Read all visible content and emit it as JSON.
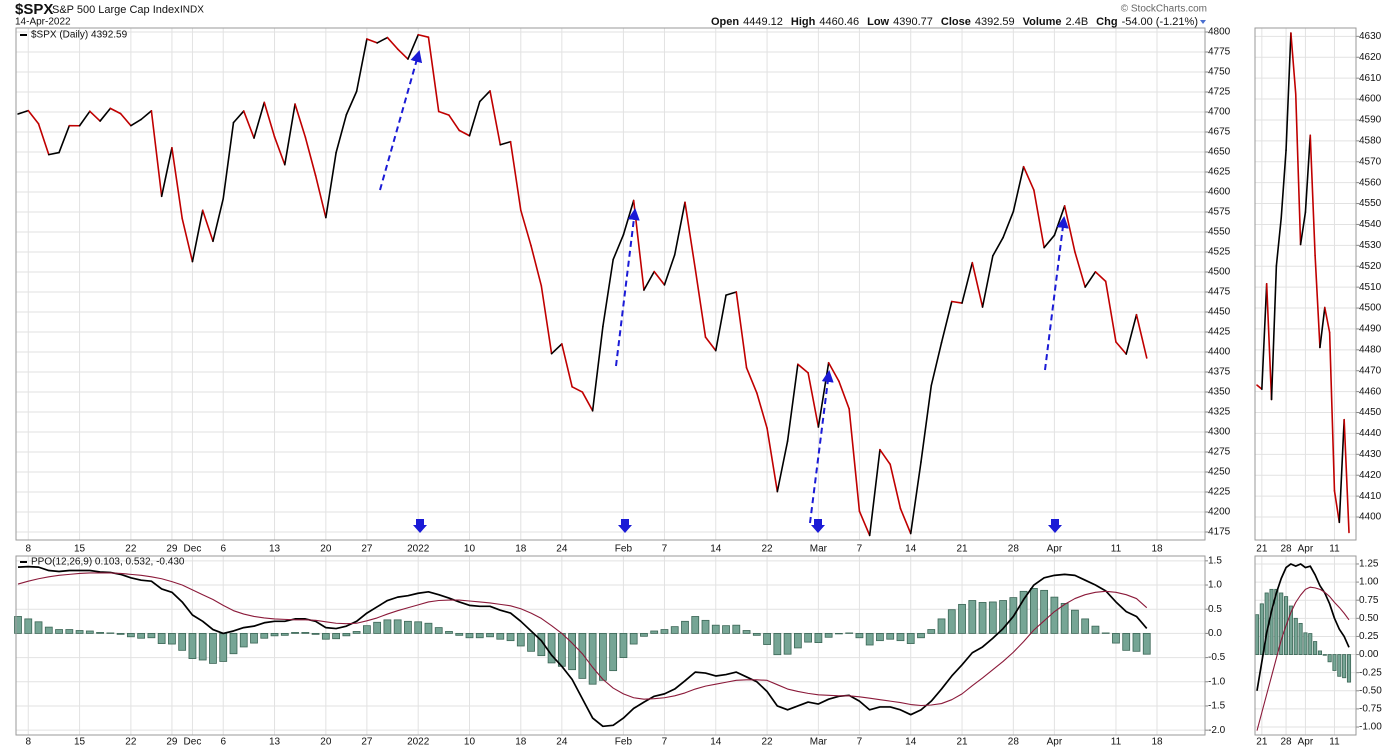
{
  "header": {
    "symbol": "$SPX",
    "name": "S&P 500 Large Cap Index",
    "exchange": "INDX",
    "date": "14-Apr-2022",
    "source": "© StockCharts.com",
    "quote": [
      {
        "label": "Open",
        "value": "4449.12"
      },
      {
        "label": "High",
        "value": "4460.46"
      },
      {
        "label": "Low",
        "value": "4390.77"
      },
      {
        "label": "Close",
        "value": "4392.59"
      },
      {
        "label": "Volume",
        "value": "2.4B"
      },
      {
        "label": "Chg",
        "value": "-54.00 (-1.21%)"
      }
    ]
  },
  "chart_data": [
    {
      "type": "line",
      "legend": "$SPX (Daily) 4392.59",
      "up_color": "#000000",
      "down_color": "#c00000",
      "grid": true,
      "categories": [
        null,
        "8",
        null,
        null,
        null,
        null,
        "15",
        null,
        null,
        null,
        null,
        "22",
        null,
        null,
        null,
        "29",
        null,
        "Dec",
        null,
        null,
        "6",
        null,
        null,
        null,
        null,
        "13",
        null,
        null,
        null,
        null,
        "20",
        null,
        null,
        null,
        "27",
        null,
        null,
        null,
        null,
        "2022",
        null,
        null,
        null,
        null,
        "10",
        null,
        null,
        null,
        null,
        "18",
        null,
        null,
        null,
        "24",
        null,
        null,
        null,
        null,
        null,
        "Feb",
        null,
        null,
        null,
        "7",
        null,
        null,
        null,
        null,
        "14",
        null,
        null,
        null,
        null,
        "22",
        null,
        null,
        null,
        null,
        "Mar",
        null,
        null,
        null,
        "7",
        null,
        null,
        null,
        null,
        "14",
        null,
        null,
        null,
        null,
        "21",
        null,
        null,
        null,
        null,
        "28",
        null,
        null,
        null,
        "Apr",
        null,
        null,
        null,
        null,
        null,
        "11",
        null,
        null,
        null,
        "18"
      ],
      "values": [
        4697.53,
        4701.7,
        4685.25,
        4646.71,
        4649.27,
        4682.85,
        4682.8,
        4700.9,
        4688.67,
        4704.54,
        4697.96,
        4682.94,
        4690.7,
        4701.46,
        4594.62,
        4655.27,
        4567.0,
        4513.04,
        4577.1,
        4538.43,
        4591.67,
        4686.75,
        4701.21,
        4667.45,
        4712.02,
        4668.97,
        4634.09,
        4709.85,
        4668.67,
        4620.64,
        4568.02,
        4649.23,
        4696.56,
        4725.79,
        4791.19,
        4786.35,
        4793.06,
        4778.73,
        4766.18,
        4796.56,
        4793.54,
        4700.58,
        4696.05,
        4677.03,
        4670.29,
        4713.07,
        4726.35,
        4659.03,
        4662.85,
        4577.11,
        4532.76,
        4482.73,
        4397.94,
        4410.13,
        4356.45,
        4349.93,
        4326.51,
        4431.85,
        4515.55,
        4546.54,
        4589.38,
        4477.44,
        4500.53,
        4483.87,
        4521.54,
        4587.18,
        4504.08,
        4418.64,
        4401.67,
        4471.07,
        4475.01,
        4380.26,
        4348.87,
        4304.76,
        4225.5,
        4288.7,
        4384.65,
        4373.94,
        4306.26,
        4386.54,
        4363.49,
        4328.87,
        4201.09,
        4170.7,
        4277.88,
        4259.52,
        4204.31,
        4173.11,
        4262.45,
        4357.86,
        4411.67,
        4463.12,
        4461.18,
        4511.61,
        4456.24,
        4520.16,
        4543.06,
        4575.52,
        4631.6,
        4602.45,
        4530.41,
        4545.86,
        4582.64,
        4525.12,
        4481.15,
        4500.21,
        4488.28,
        4412.53,
        4397.45,
        4446.59,
        4392.59,
        null
      ],
      "ylim": [
        4165,
        4805
      ],
      "yticks": [
        4175,
        4200,
        4225,
        4250,
        4275,
        4300,
        4325,
        4350,
        4375,
        4400,
        4425,
        4450,
        4475,
        4500,
        4525,
        4550,
        4575,
        4600,
        4625,
        4650,
        4675,
        4700,
        4725,
        4750,
        4775,
        4800
      ]
    },
    {
      "type": "combo",
      "legend": "PPO(12,26,9) 0.103, 0.532, -0.430",
      "grid": true,
      "series": [
        {
          "kind": "bar",
          "color": "#76a595",
          "values": [
            0.35,
            0.3,
            0.24,
            0.13,
            0.08,
            0.08,
            0.06,
            0.05,
            0.02,
            0.01,
            -0.02,
            -0.07,
            -0.1,
            -0.09,
            -0.21,
            -0.22,
            -0.35,
            -0.52,
            -0.55,
            -0.62,
            -0.58,
            -0.42,
            -0.28,
            -0.2,
            -0.1,
            -0.05,
            -0.04,
            0.02,
            0.02,
            -0.02,
            -0.12,
            -0.11,
            -0.05,
            0.04,
            0.16,
            0.23,
            0.28,
            0.28,
            0.25,
            0.24,
            0.21,
            0.12,
            0.04,
            -0.04,
            -0.09,
            -0.09,
            -0.07,
            -0.12,
            -0.15,
            -0.26,
            -0.37,
            -0.46,
            -0.61,
            -0.68,
            -0.75,
            -0.93,
            -1.05,
            -0.97,
            -0.77,
            -0.5,
            -0.22,
            -0.06,
            0.05,
            0.08,
            0.14,
            0.25,
            0.35,
            0.27,
            0.17,
            0.16,
            0.17,
            0.06,
            -0.04,
            -0.23,
            -0.44,
            -0.43,
            -0.3,
            -0.18,
            -0.19,
            -0.08,
            -0.01,
            0.01,
            -0.09,
            -0.24,
            -0.15,
            -0.12,
            -0.15,
            -0.21,
            -0.09,
            0.08,
            0.3,
            0.49,
            0.6,
            0.68,
            0.64,
            0.65,
            0.68,
            0.74,
            0.87,
            0.93,
            0.89,
            0.75,
            0.62,
            0.48,
            0.3,
            0.15,
            0.01,
            -0.2,
            -0.35,
            -0.37,
            -0.43,
            null
          ]
        },
        {
          "color": "#000000",
          "values": [
            1.37,
            1.38,
            1.37,
            1.3,
            1.28,
            1.3,
            1.3,
            1.3,
            1.27,
            1.26,
            1.22,
            1.15,
            1.1,
            1.08,
            0.92,
            0.85,
            0.65,
            0.38,
            0.25,
            0.08,
            0.0,
            0.05,
            0.12,
            0.15,
            0.22,
            0.25,
            0.25,
            0.3,
            0.3,
            0.25,
            0.12,
            0.1,
            0.15,
            0.25,
            0.42,
            0.55,
            0.68,
            0.75,
            0.78,
            0.83,
            0.86,
            0.8,
            0.73,
            0.65,
            0.58,
            0.56,
            0.56,
            0.48,
            0.42,
            0.25,
            0.05,
            -0.15,
            -0.45,
            -0.68,
            -0.95,
            -1.35,
            -1.75,
            -1.92,
            -1.9,
            -1.75,
            -1.55,
            -1.42,
            -1.3,
            -1.25,
            -1.15,
            -0.98,
            -0.8,
            -0.82,
            -0.88,
            -0.85,
            -0.8,
            -0.9,
            -1.0,
            -1.2,
            -1.5,
            -1.58,
            -1.5,
            -1.42,
            -1.46,
            -1.36,
            -1.3,
            -1.28,
            -1.4,
            -1.58,
            -1.52,
            -1.52,
            -1.58,
            -1.68,
            -1.58,
            -1.4,
            -1.15,
            -0.88,
            -0.65,
            -0.4,
            -0.28,
            -0.1,
            0.1,
            0.35,
            0.7,
            1.0,
            1.15,
            1.2,
            1.22,
            1.2,
            1.1,
            1.0,
            0.88,
            0.65,
            0.45,
            0.35,
            0.103,
            null
          ]
        },
        {
          "color": "#8b1a3a",
          "values": [
            1.02,
            1.08,
            1.13,
            1.17,
            1.2,
            1.22,
            1.24,
            1.25,
            1.25,
            1.25,
            1.24,
            1.22,
            1.2,
            1.17,
            1.13,
            1.07,
            1.0,
            0.9,
            0.8,
            0.7,
            0.58,
            0.47,
            0.4,
            0.35,
            0.32,
            0.3,
            0.29,
            0.28,
            0.28,
            0.27,
            0.24,
            0.21,
            0.2,
            0.21,
            0.26,
            0.32,
            0.4,
            0.47,
            0.53,
            0.59,
            0.65,
            0.68,
            0.69,
            0.69,
            0.67,
            0.65,
            0.63,
            0.6,
            0.57,
            0.51,
            0.42,
            0.31,
            0.16,
            0.0,
            -0.2,
            -0.42,
            -0.7,
            -0.95,
            -1.13,
            -1.25,
            -1.33,
            -1.36,
            -1.35,
            -1.33,
            -1.29,
            -1.23,
            -1.15,
            -1.09,
            -1.05,
            -1.01,
            -0.97,
            -0.96,
            -0.96,
            -0.97,
            -1.06,
            -1.15,
            -1.2,
            -1.24,
            -1.27,
            -1.28,
            -1.29,
            -1.29,
            -1.31,
            -1.34,
            -1.37,
            -1.4,
            -1.43,
            -1.47,
            -1.49,
            -1.48,
            -1.45,
            -1.37,
            -1.25,
            -1.08,
            -0.92,
            -0.75,
            -0.58,
            -0.39,
            -0.17,
            0.07,
            0.26,
            0.45,
            0.6,
            0.72,
            0.8,
            0.85,
            0.87,
            0.85,
            0.8,
            0.72,
            0.532,
            null
          ]
        }
      ],
      "ylim": [
        -2.1,
        1.6
      ],
      "yticks": [
        1.5,
        {
          "value": 1,
          "label": "1.0"
        },
        0.5,
        {
          "value": 0,
          "label": "0.0"
        },
        -0.5,
        {
          "value": -1,
          "label": "-1.0"
        },
        -1.5,
        {
          "value": -2,
          "label": "-2.0"
        }
      ]
    },
    {
      "type": "line",
      "up_color": "#000000",
      "down_color": "#c00000",
      "grid": true,
      "categories": [
        null,
        "21",
        null,
        null,
        null,
        null,
        "28",
        null,
        null,
        null,
        "Apr",
        null,
        null,
        null,
        null,
        null,
        "11",
        null,
        null,
        null
      ],
      "values": [
        4463.12,
        4461.18,
        4511.61,
        4456.24,
        4520.16,
        4543.06,
        4575.52,
        4631.6,
        4602.45,
        4530.41,
        4545.86,
        4582.64,
        4525.12,
        4481.15,
        4500.21,
        4488.28,
        4412.53,
        4397.45,
        4446.59,
        4392.59
      ],
      "ylim": [
        4389,
        4634
      ],
      "yticks": [
        4400,
        4410,
        4420,
        4430,
        4440,
        4450,
        4460,
        4470,
        4480,
        4490,
        4500,
        4510,
        4520,
        4530,
        4540,
        4550,
        4560,
        4570,
        4580,
        4590,
        4600,
        4610,
        4620,
        4630
      ]
    },
    {
      "type": "combo",
      "grid": true,
      "series": [
        {
          "kind": "bar",
          "color": "#76a595",
          "values": [
            0.55,
            0.7,
            0.85,
            0.9,
            0.9,
            0.85,
            0.8,
            0.67,
            0.5,
            0.43,
            0.3,
            0.29,
            0.18,
            0.05,
            -0.01,
            -0.1,
            -0.22,
            -0.3,
            -0.32,
            -0.38
          ]
        },
        {
          "color": "#000000",
          "values": [
            -0.5,
            -0.1,
            0.3,
            0.6,
            0.85,
            1.05,
            1.2,
            1.25,
            1.22,
            1.25,
            1.2,
            1.22,
            1.1,
            0.95,
            0.85,
            0.7,
            0.5,
            0.35,
            0.25,
            0.1
          ]
        },
        {
          "color": "#8b1a3a",
          "values": [
            -1.05,
            -0.8,
            -0.55,
            -0.3,
            -0.05,
            0.2,
            0.4,
            0.58,
            0.72,
            0.82,
            0.9,
            0.93,
            0.92,
            0.9,
            0.86,
            0.8,
            0.72,
            0.65,
            0.57,
            0.48
          ]
        }
      ],
      "ylim": [
        -1.11,
        1.36
      ],
      "yticks": [
        1.25,
        {
          "value": 1,
          "label": "1.00"
        },
        0.75,
        {
          "value": 0.5,
          "label": "0.50"
        },
        0.25,
        {
          "value": 0,
          "label": "0.00"
        },
        -0.25,
        {
          "value": -0.5,
          "label": "-0.50"
        },
        -0.75,
        {
          "value": -1,
          "label": "-1.00"
        }
      ]
    }
  ]
}
